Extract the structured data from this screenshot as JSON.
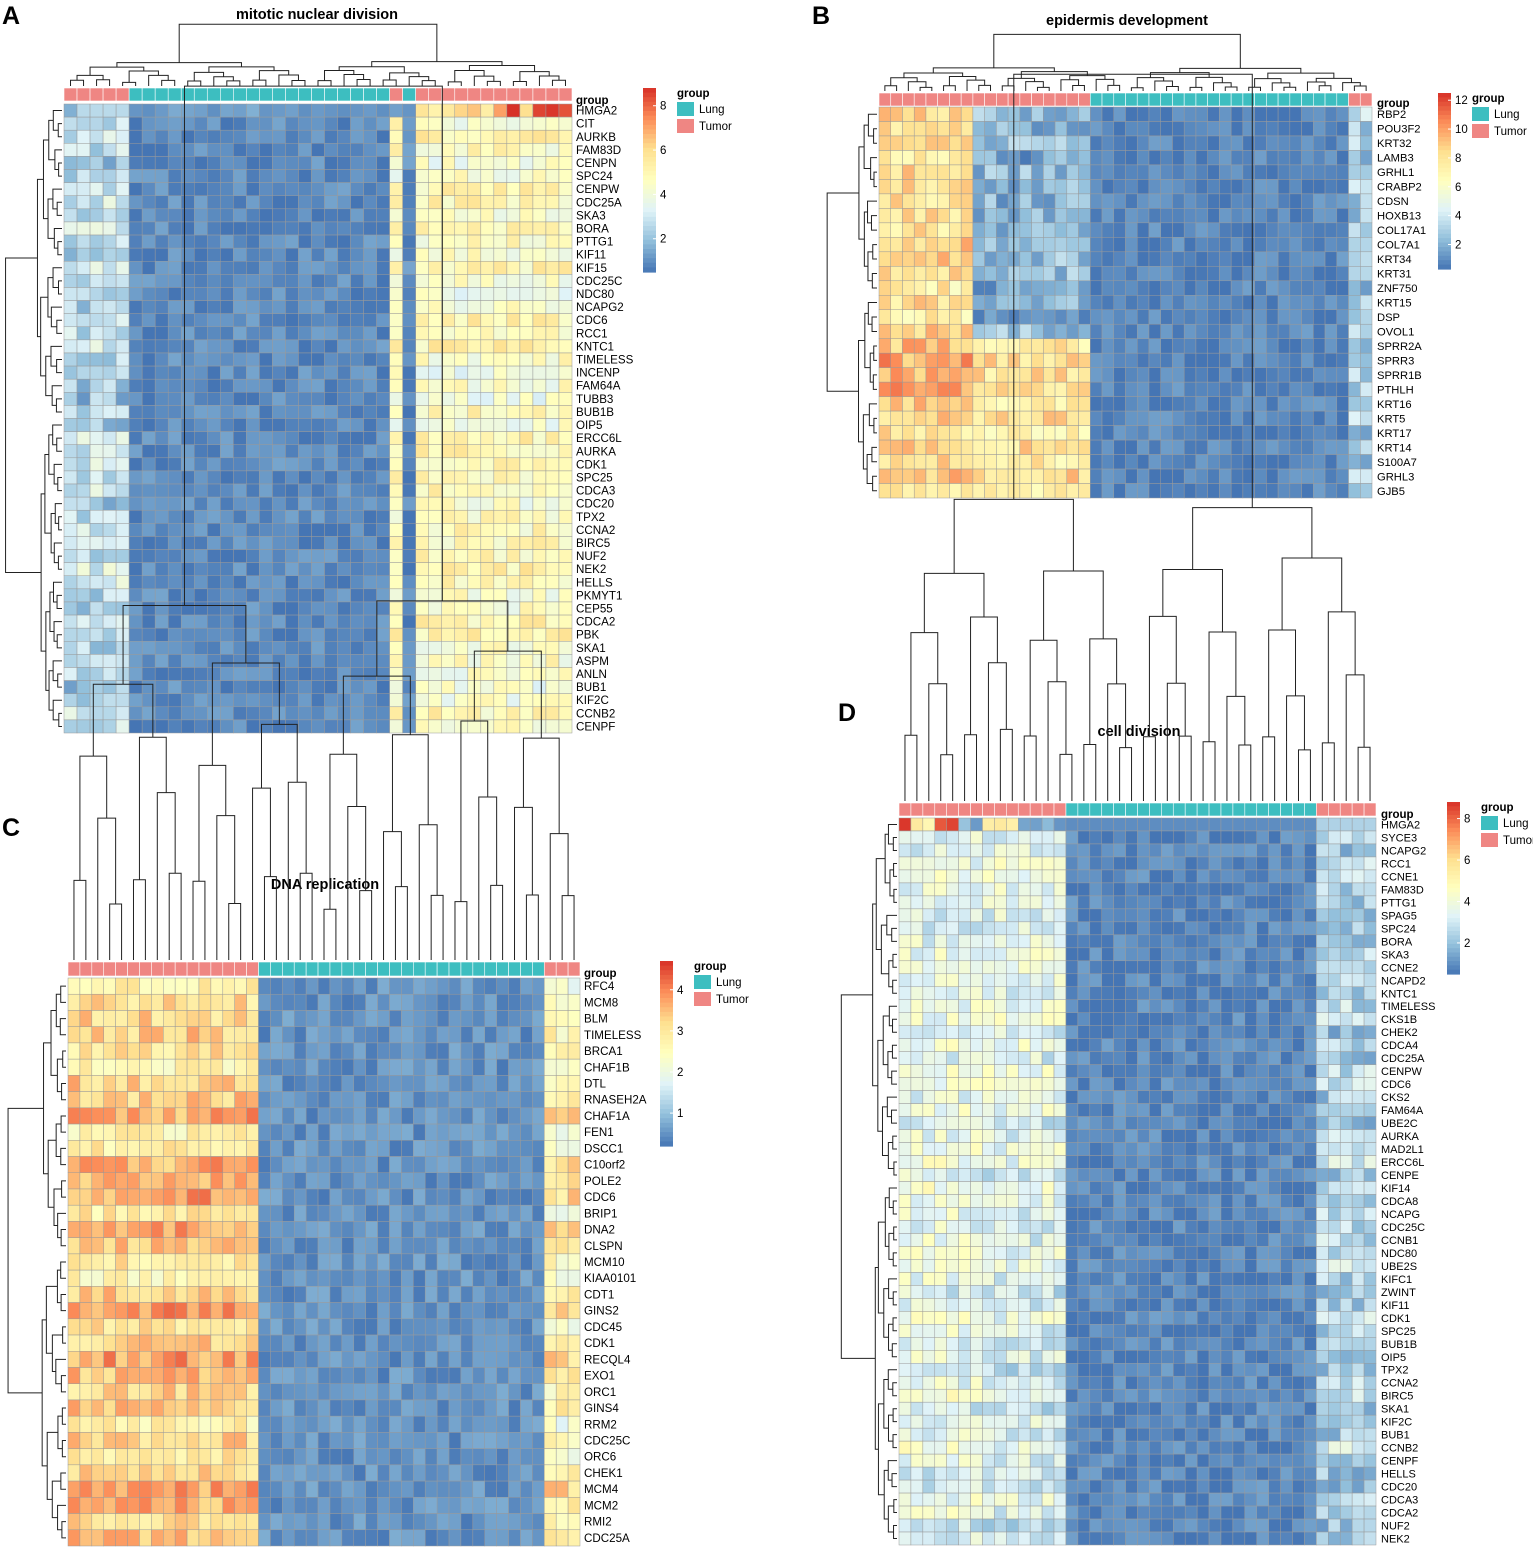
{
  "figure": {
    "panel_count": 4
  },
  "colors": {
    "lung": "#3DBEC0",
    "tumor": "#EF8683",
    "scale": [
      "#4575B4",
      "#91BFDB",
      "#E0F3F8",
      "#FFFFBF",
      "#FEE090",
      "#FC8D59",
      "#D73027"
    ],
    "grid": "#9a9a9a"
  },
  "chart_data": [
    {
      "panel_label": "A",
      "type": "heatmap",
      "title": "mitotic nuclear division",
      "annotation_label": "group",
      "groups": [
        "T",
        "T",
        "T",
        "T",
        "T",
        "L",
        "L",
        "L",
        "L",
        "L",
        "L",
        "L",
        "L",
        "L",
        "L",
        "L",
        "L",
        "L",
        "L",
        "L",
        "L",
        "L",
        "L",
        "L",
        "L",
        "T",
        "L",
        "T",
        "T",
        "T",
        "T",
        "T",
        "T",
        "T",
        "T",
        "T",
        "T",
        "T",
        "T"
      ],
      "rows": [
        "HMGA2",
        "CIT",
        "AURKB",
        "FAM83D",
        "CENPN",
        "SPC24",
        "CENPW",
        "CDC25A",
        "SKA3",
        "BORA",
        "PTTG1",
        "KIF11",
        "KIF15",
        "CDC25C",
        "NDC80",
        "NCAPG2",
        "CDC6",
        "RCC1",
        "KNTC1",
        "TIMELESS",
        "INCENP",
        "FAM64A",
        "TUBB3",
        "BUB1B",
        "OIP5",
        "ERCC6L",
        "AURKA",
        "CDK1",
        "SPC25",
        "CDCA3",
        "CDC20",
        "TPX2",
        "CCNA2",
        "BIRC5",
        "NUF2",
        "NEK2",
        "HELLS",
        "PKMYT1",
        "CEP55",
        "CDCA2",
        "PBK",
        "SKA1",
        "ASPM",
        "ANLN",
        "BUB1",
        "KIF2C",
        "CCNB2",
        "CENPF"
      ],
      "value_range": [
        0.5,
        8.8
      ],
      "legend": {
        "title": "group",
        "entries": [
          "Lung",
          "Tumor"
        ],
        "ticks": [
          2,
          4,
          6,
          8
        ]
      },
      "pattern": {
        "lowT": 2.6,
        "lung": 1.0,
        "highT": 4.6,
        "hotRow": "HMGA2",
        "hot": [
          [
            0,
            1.6
          ],
          [
            5,
            1.1
          ],
          [
            6,
            1.0
          ],
          [
            7,
            1.2
          ],
          [
            8,
            1.5
          ],
          [
            9,
            1.4
          ],
          [
            10,
            1.3
          ],
          [
            11,
            1.0
          ],
          [
            12,
            1.4
          ],
          [
            13,
            1.3
          ],
          [
            14,
            1.6
          ],
          [
            15,
            1.1
          ],
          [
            16,
            1.2
          ],
          [
            17,
            1.3
          ],
          [
            18,
            1.0
          ],
          [
            19,
            1.2
          ],
          [
            20,
            1.1
          ],
          [
            21,
            1.0
          ],
          [
            22,
            1.1
          ],
          [
            23,
            1.2
          ],
          [
            24,
            1.0
          ],
          [
            25,
            1.3
          ],
          [
            26,
            1.1
          ],
          [
            27,
            5.8
          ],
          [
            28,
            5.2
          ],
          [
            29,
            5.6
          ],
          [
            30,
            6.2
          ],
          [
            31,
            6.5
          ],
          [
            32,
            5.4
          ],
          [
            33,
            7.1
          ],
          [
            34,
            8.8
          ],
          [
            35,
            6.0
          ],
          [
            36,
            8.5
          ],
          [
            37,
            8.7
          ],
          [
            38,
            8.3
          ]
        ]
      }
    },
    {
      "panel_label": "B",
      "type": "heatmap",
      "title": "epidermis development",
      "annotation_label": "group",
      "groups": [
        "T",
        "T",
        "T",
        "T",
        "T",
        "T",
        "T",
        "T",
        "T",
        "T",
        "T",
        "T",
        "T",
        "T",
        "T",
        "T",
        "T",
        "T",
        "L",
        "L",
        "L",
        "L",
        "L",
        "L",
        "L",
        "L",
        "L",
        "L",
        "L",
        "L",
        "L",
        "L",
        "L",
        "L",
        "L",
        "L",
        "L",
        "L",
        "L",
        "L",
        "T",
        "T"
      ],
      "rows": [
        "RBP2",
        "POU3F2",
        "KRT32",
        "LAMB3",
        "GRHL1",
        "CRABP2",
        "CDSN",
        "HOXB13",
        "COL17A1",
        "COL7A1",
        "KRT34",
        "KRT31",
        "ZNF750",
        "KRT15",
        "DSP",
        "OVOL1",
        "SPRR2A",
        "SPRR3",
        "SPRR1B",
        "PTHLH",
        "KRT16",
        "KRT5",
        "KRT17",
        "KRT14",
        "S100A7",
        "GRHL3",
        "GJB5"
      ],
      "value_range": [
        0.3,
        12.5
      ],
      "legend": {
        "title": "group",
        "entries": [
          "Lung",
          "Tumor"
        ],
        "ticks": [
          2,
          4,
          6,
          8,
          10,
          12
        ]
      },
      "pattern": {
        "lowT": 3.0,
        "lung": 0.9,
        "highT": 8.0
      }
    },
    {
      "panel_label": "C",
      "type": "heatmap",
      "title": "DNA replication",
      "annotation_label": "group",
      "groups": [
        "T",
        "T",
        "T",
        "T",
        "T",
        "T",
        "T",
        "T",
        "T",
        "T",
        "T",
        "T",
        "T",
        "T",
        "T",
        "T",
        "L",
        "L",
        "L",
        "L",
        "L",
        "L",
        "L",
        "L",
        "L",
        "L",
        "L",
        "L",
        "L",
        "L",
        "L",
        "L",
        "L",
        "L",
        "L",
        "L",
        "L",
        "L",
        "L",
        "L",
        "T",
        "T",
        "T"
      ],
      "rows": [
        "RFC4",
        "MCM8",
        "BLM",
        "TIMELESS",
        "BRCA1",
        "CHAF1B",
        "DTL",
        "RNASEH2A",
        "CHAF1A",
        "FEN1",
        "DSCC1",
        "C10orf2",
        "POLE2",
        "CDC6",
        "BRIP1",
        "DNA2",
        "CLSPN",
        "MCM10",
        "KIAA0101",
        "CDT1",
        "GINS2",
        "CDC45",
        "CDK1",
        "RECQL4",
        "EXO1",
        "ORC1",
        "GINS4",
        "RRM2",
        "CDC25C",
        "ORC6",
        "CHEK1",
        "MCM4",
        "MCM2",
        "RMI2",
        "CDC25A"
      ],
      "value_range": [
        0.2,
        4.7
      ],
      "legend": {
        "title": "group",
        "entries": [
          "Lung",
          "Tumor"
        ],
        "ticks": [
          1,
          2,
          3,
          4
        ]
      },
      "pattern": {
        "lowT": 2.6,
        "lung": 0.55,
        "highT": 3.2
      }
    },
    {
      "panel_label": "D",
      "type": "heatmap",
      "title": "cell division",
      "annotation_label": "group",
      "groups": [
        "T",
        "T",
        "T",
        "T",
        "T",
        "T",
        "T",
        "T",
        "T",
        "T",
        "T",
        "T",
        "T",
        "T",
        "L",
        "L",
        "L",
        "L",
        "L",
        "L",
        "L",
        "L",
        "L",
        "L",
        "L",
        "L",
        "L",
        "L",
        "L",
        "L",
        "L",
        "L",
        "L",
        "L",
        "L",
        "T",
        "T",
        "T",
        "T",
        "T"
      ],
      "rows": [
        "HMGA2",
        "SYCE3",
        "NCAPG2",
        "RCC1",
        "CCNE1",
        "FAM83D",
        "PTTG1",
        "SPAG5",
        "SPC24",
        "BORA",
        "SKA3",
        "CCNE2",
        "NCAPD2",
        "KNTC1",
        "TIMELESS",
        "CKS1B",
        "CHEK2",
        "CDCA4",
        "CDC25A",
        "CENPW",
        "CDC6",
        "CKS2",
        "FAM64A",
        "UBE2C",
        "AURKA",
        "MAD2L1",
        "ERCC6L",
        "CENPE",
        "KIF14",
        "CDCA8",
        "NCAPG",
        "CDC25C",
        "CCNB1",
        "NDC80",
        "UBE2S",
        "KIFC1",
        "ZWINT",
        "KIF11",
        "CDK1",
        "SPC25",
        "BUB1B",
        "OIP5",
        "TPX2",
        "CCNA2",
        "BIRC5",
        "SKA1",
        "KIF2C",
        "BUB1",
        "CCNB2",
        "CENPF",
        "HELLS",
        "CDC20",
        "CDCA3",
        "CDCA2",
        "NUF2",
        "NEK2"
      ],
      "value_range": [
        0.5,
        8.8
      ],
      "legend": {
        "title": "group",
        "entries": [
          "Lung",
          "Tumor"
        ],
        "ticks": [
          2,
          4,
          6,
          8
        ]
      },
      "pattern": {
        "lowT": 2.4,
        "lung": 0.95,
        "highT": 3.6,
        "hotRow": "HMGA2",
        "hot": [
          [
            0,
            8.7
          ],
          [
            1,
            5.6
          ],
          [
            2,
            5.0
          ],
          [
            3,
            8.2
          ],
          [
            4,
            8.5
          ],
          [
            5,
            2.0
          ],
          [
            6,
            1.2
          ],
          [
            7,
            5.4
          ],
          [
            8,
            5.6
          ],
          [
            9,
            5.3
          ],
          [
            10,
            1.4
          ],
          [
            11,
            1.3
          ],
          [
            12,
            1.8
          ],
          [
            13,
            1.1
          ]
        ]
      }
    }
  ]
}
